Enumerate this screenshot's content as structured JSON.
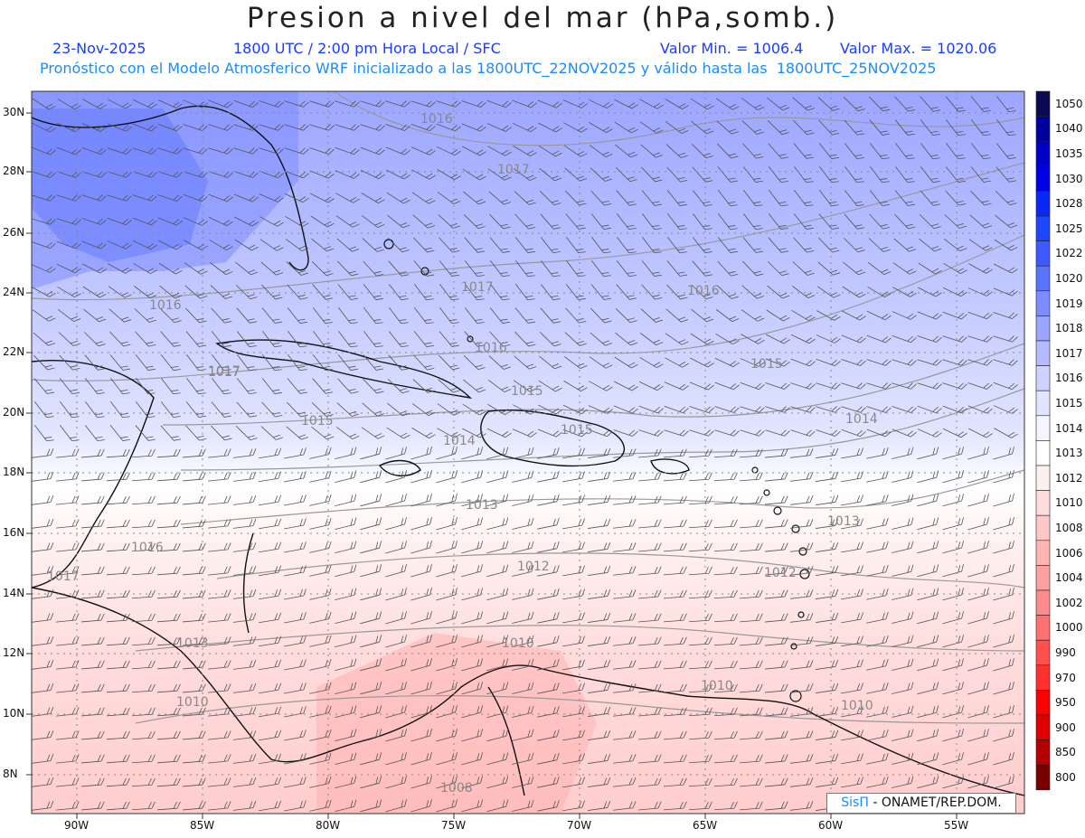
{
  "header": {
    "title": "Presion a nivel del mar (hPa,somb.)",
    "date": "23-Nov-2025",
    "time": "1800 UTC / 2:00 pm Hora Local / SFC",
    "min": "Valor Min. = 1006.4",
    "max": "Valor Max. = 1020.06",
    "forecast": "Pronóstico con el Modelo Atmosferico WRF inicializado a las 1800UTC_22NOV2025 y válido hasta las  1800UTC_25NOV2025"
  },
  "axes": {
    "lat_labels": [
      "30N",
      "28N",
      "26N",
      "24N",
      "22N",
      "20N",
      "18N",
      "16N",
      "14N",
      "12N",
      "10N",
      "8N"
    ],
    "lon_labels": [
      "90W",
      "85W",
      "80W",
      "75W",
      "70W",
      "65W",
      "60W",
      "55W"
    ]
  },
  "colorbar": {
    "levels": [
      "1050",
      "1040",
      "1035",
      "1030",
      "1028",
      "1025",
      "1022",
      "1020",
      "1019",
      "1018",
      "1017",
      "1016",
      "1015",
      "1014",
      "1013",
      "1012",
      "1010",
      "1008",
      "1006",
      "1004",
      "1002",
      "1000",
      "990",
      "970",
      "950",
      "900",
      "850",
      "800"
    ],
    "colors": [
      "#0a0a50",
      "#0000a0",
      "#0000c8",
      "#0000e6",
      "#0a28f5",
      "#1e46fa",
      "#3c5aff",
      "#5a73ff",
      "#7d8cff",
      "#9ba5ff",
      "#b4bcff",
      "#cdd2ff",
      "#e1e5ff",
      "#f4f5ff",
      "#ffffff",
      "#fff0f0",
      "#ffdcdc",
      "#ffc8c8",
      "#ffb4b4",
      "#ffa0a0",
      "#ff8c8c",
      "#ff7070",
      "#ff5050",
      "#ff3030",
      "#ff0000",
      "#e00000",
      "#b40000",
      "#780000"
    ]
  },
  "contour_labels": [
    {
      "text": "1016"
    },
    {
      "text": "1017"
    },
    {
      "text": "1017"
    },
    {
      "text": "1016"
    },
    {
      "text": "1017"
    },
    {
      "text": "1016"
    },
    {
      "text": "1015"
    },
    {
      "text": "1017"
    },
    {
      "text": "1015"
    },
    {
      "text": "1016"
    },
    {
      "text": "1014"
    },
    {
      "text": "1015"
    },
    {
      "text": "1014"
    },
    {
      "text": "1013"
    },
    {
      "text": "1013"
    },
    {
      "text": "1016"
    },
    {
      "text": "1017"
    },
    {
      "text": "1012"
    },
    {
      "text": "1012"
    },
    {
      "text": "1013"
    },
    {
      "text": "1010"
    },
    {
      "text": "1010"
    },
    {
      "text": "1010"
    },
    {
      "text": "1010"
    },
    {
      "text": "1008"
    },
    {
      "text": "1015"
    }
  ],
  "credit": {
    "logo": "SisΠ",
    "text": " - ONAMET/REP.DOM."
  }
}
